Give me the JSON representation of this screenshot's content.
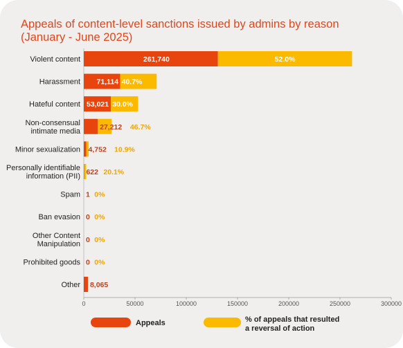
{
  "chart_data": {
    "type": "bar",
    "orientation": "horizontal",
    "stacked": true,
    "title": "Appeals of content-level sanctions issued by admins by reason (January - June 2025)",
    "categories": [
      "Violent content",
      "Harassment",
      "Hateful content",
      "Non-consensual intimate media",
      "Minor sexualization",
      "Personally identifiable information (PII)",
      "Spam",
      "Ban evasion",
      "Other Content Manipulation",
      "Prohibited goods",
      "Other"
    ],
    "category_lines": [
      [
        "Violent content"
      ],
      [
        "Harassment"
      ],
      [
        "Hateful content"
      ],
      [
        "Non-consensual",
        "intimate media"
      ],
      [
        "Minor sexualization"
      ],
      [
        "Personally identifiable",
        "information (PII)"
      ],
      [
        "Spam"
      ],
      [
        "Ban evasion"
      ],
      [
        "Other Content",
        "Manipulation"
      ],
      [
        "Prohibited goods"
      ],
      [
        "Other"
      ]
    ],
    "series": [
      {
        "name": "Appeals",
        "color": "#e8440e",
        "values": [
          261740,
          71114,
          53021,
          27212,
          4752,
          622,
          1,
          0,
          0,
          0,
          8065
        ],
        "labels": [
          "261,740",
          "71,114",
          "53,021",
          "27,212",
          "4,752",
          "622",
          "1",
          "0",
          "0",
          "0",
          "8,065"
        ]
      },
      {
        "name": "% of appeals that resulted a reversal of action",
        "legend_lines": [
          "% of appeals that resulted",
          "a reversal of action"
        ],
        "color": "#fbb900",
        "values": [
          52.0,
          40.7,
          30.0,
          46.7,
          10.9,
          20.1,
          0,
          0,
          0,
          0,
          null
        ],
        "labels": [
          "52.0%",
          "40.7%",
          "30.0%",
          "46.7%",
          "10.9%",
          "20.1%",
          "0%",
          "0%",
          "0%",
          "0%",
          ""
        ]
      }
    ],
    "xlim": [
      0,
      300000
    ],
    "xticks": [
      0,
      50000,
      100000,
      150000,
      200000,
      250000,
      300000
    ],
    "xtick_labels": [
      "0",
      "50000",
      "100000",
      "150000",
      "200000",
      "250000",
      "300000"
    ],
    "grid": false,
    "legend_position": "bottom"
  }
}
